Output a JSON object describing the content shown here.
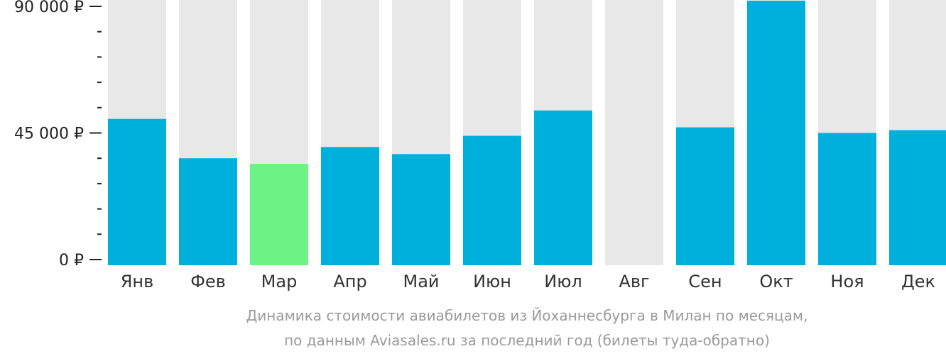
{
  "chart_data": {
    "type": "bar",
    "categories": [
      "Янв",
      "Фев",
      "Мар",
      "Апр",
      "Май",
      "Июн",
      "Июл",
      "Авг",
      "Сен",
      "Окт",
      "Ноя",
      "Дек"
    ],
    "values": [
      50000,
      36000,
      34000,
      40000,
      37500,
      44000,
      53000,
      null,
      47000,
      92000,
      45000,
      46000
    ],
    "y_tick_labels": [
      "90 000 ₽",
      "45 000 ₽",
      "0 ₽"
    ],
    "y_tick_values": [
      90000,
      45000,
      0
    ],
    "ylim": [
      0,
      92000
    ],
    "highlight_category": "Мар",
    "caption_line1": "Динамика стоимости авиабилетов из Йоханнесбурга в Милан по месяцам,",
    "caption_line2": "по данным Aviasales.ru за последний год (билеты туда-обратно)",
    "colors": {
      "bar": "#00b0dc",
      "highlight": "#6cf286",
      "track": "#e8e8e8",
      "axis": "#222222"
    }
  }
}
